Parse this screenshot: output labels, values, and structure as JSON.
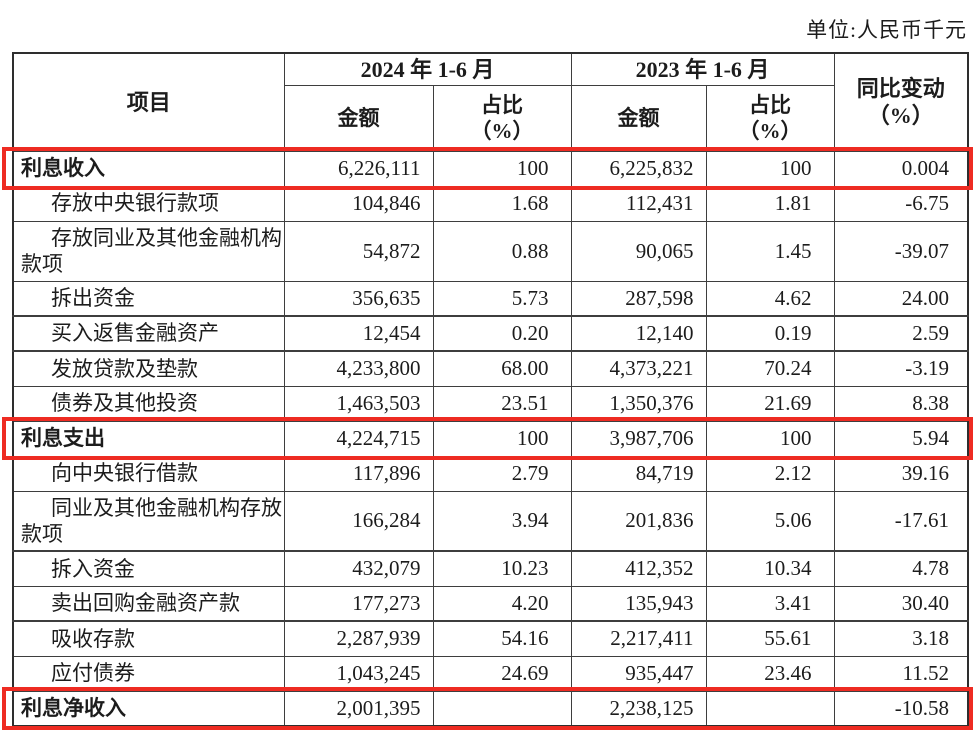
{
  "unit_label": "单位:人民币千元",
  "colors": {
    "highlight_red": "#ee2b22",
    "grid_line": "#3e3e3e"
  },
  "table": {
    "header": {
      "item": "项目",
      "period_2024": "2024 年 1-6 月",
      "period_2023": "2023 年 1-6 月",
      "amount": "金额",
      "share": "占比\n（%）",
      "yoy": "同比变动\n（%）"
    },
    "rows": [
      {
        "label": "利息收入",
        "bold": true,
        "highlight": true,
        "cells": [
          "6,226,111",
          "100",
          "6,225,832",
          "100",
          "0.004"
        ]
      },
      {
        "label": "存放中央银行款项",
        "indent": true,
        "cells": [
          "104,846",
          "1.68",
          "112,431",
          "1.81",
          "-6.75"
        ]
      },
      {
        "label": "存放同业及其他金融机构款项",
        "indent": true,
        "tall": true,
        "cells": [
          "54,872",
          "0.88",
          "90,065",
          "1.45",
          "-39.07"
        ]
      },
      {
        "label": "拆出资金",
        "indent": true,
        "cells": [
          "356,635",
          "5.73",
          "287,598",
          "4.62",
          "24.00"
        ]
      },
      {
        "label": "买入返售金融资产",
        "indent": true,
        "band": true,
        "cells": [
          "12,454",
          "0.20",
          "12,140",
          "0.19",
          "2.59"
        ]
      },
      {
        "label": "发放贷款及垫款",
        "indent": true,
        "cells": [
          "4,233,800",
          "68.00",
          "4,373,221",
          "70.24",
          "-3.19"
        ]
      },
      {
        "label": "债券及其他投资",
        "indent": true,
        "cells": [
          "1,463,503",
          "23.51",
          "1,350,376",
          "21.69",
          "8.38"
        ]
      },
      {
        "label": "利息支出",
        "bold": true,
        "highlight": true,
        "cells": [
          "4,224,715",
          "100",
          "3,987,706",
          "100",
          "5.94"
        ]
      },
      {
        "label": "向中央银行借款",
        "indent": true,
        "cells": [
          "117,896",
          "2.79",
          "84,719",
          "2.12",
          "39.16"
        ]
      },
      {
        "label": "同业及其他金融机构存放款项",
        "indent": true,
        "tall": true,
        "cells": [
          "166,284",
          "3.94",
          "201,836",
          "5.06",
          "-17.61"
        ]
      },
      {
        "label": "拆入资金",
        "indent": true,
        "band_top": true,
        "cells": [
          "432,079",
          "10.23",
          "412,352",
          "10.34",
          "4.78"
        ]
      },
      {
        "label": "卖出回购金融资产款",
        "indent": true,
        "band_bottom": true,
        "cells": [
          "177,273",
          "4.20",
          "135,943",
          "3.41",
          "30.40"
        ]
      },
      {
        "label": "吸收存款",
        "indent": true,
        "cells": [
          "2,287,939",
          "54.16",
          "2,217,411",
          "55.61",
          "3.18"
        ]
      },
      {
        "label": "应付债券",
        "indent": true,
        "cells": [
          "1,043,245",
          "24.69",
          "935,447",
          "23.46",
          "11.52"
        ]
      },
      {
        "label": "利息净收入",
        "bold": true,
        "highlight": true,
        "cells": [
          "2,001,395",
          "",
          "2,238,125",
          "",
          "-10.58"
        ]
      }
    ]
  }
}
